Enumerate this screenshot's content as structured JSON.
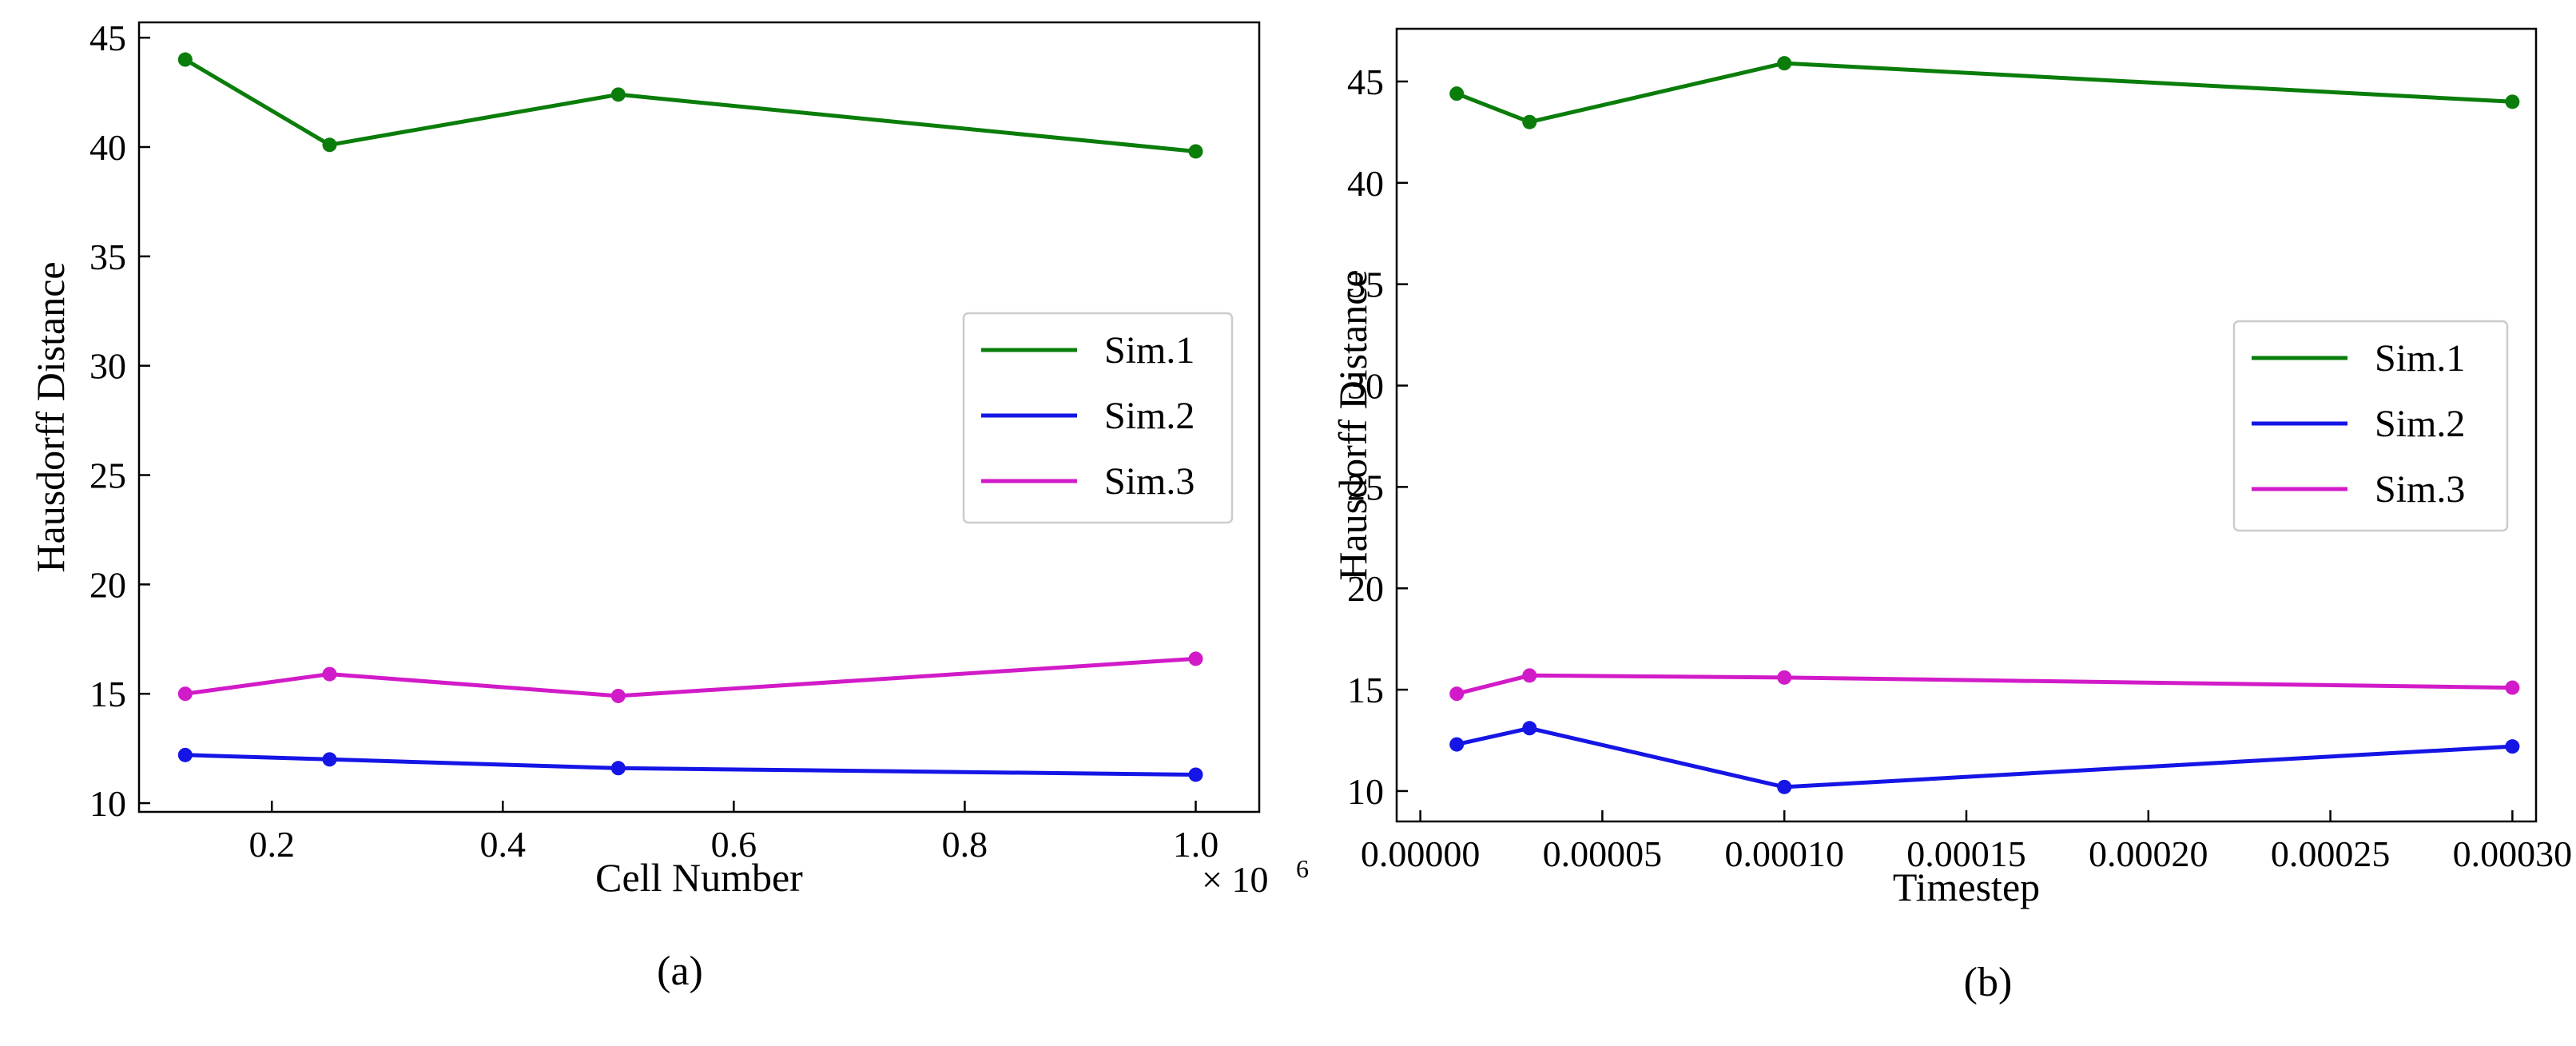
{
  "figure": {
    "panels": [
      "a",
      "b"
    ]
  },
  "chart_data": [
    {
      "id": "a",
      "type": "line",
      "caption": "(a)",
      "title": "",
      "xlabel": "Cell Number",
      "ylabel": "Hausdorff Distance",
      "x_multiplier_label": "× 10",
      "x_multiplier_exponent": "6",
      "xlim": [
        0.085,
        1.055
      ],
      "ylim": [
        9.6,
        45.7
      ],
      "x": [
        0.125,
        0.25,
        0.5,
        1.0
      ],
      "xticks": [
        0.2,
        0.4,
        0.6,
        0.8,
        1.0
      ],
      "xtick_labels": [
        "0.2",
        "0.4",
        "0.6",
        "0.8",
        "1.0"
      ],
      "yticks": [
        10,
        15,
        20,
        25,
        30,
        35,
        40,
        45
      ],
      "ytick_labels": [
        "10",
        "15",
        "20",
        "25",
        "30",
        "35",
        "40",
        "45"
      ],
      "legend_position": "center-right",
      "series": [
        {
          "name": "Sim.1",
          "color": "#0a7d0a",
          "values": [
            44.0,
            40.1,
            42.4,
            39.8
          ]
        },
        {
          "name": "Sim.2",
          "color": "#1515e6",
          "values": [
            12.2,
            12.0,
            11.6,
            11.3
          ]
        },
        {
          "name": "Sim.3",
          "color": "#d21bc8",
          "values": [
            15.0,
            15.9,
            14.9,
            16.6
          ]
        }
      ]
    },
    {
      "id": "b",
      "type": "line",
      "caption": "(b)",
      "title": "",
      "xlabel": "Timestep",
      "ylabel": "Hausdorff Distance",
      "xlim": [
        -6.5e-06,
        0.0003065
      ],
      "ylim": [
        8.5,
        47.6
      ],
      "x": [
        1e-05,
        3e-05,
        0.0001,
        0.0003
      ],
      "xticks": [
        0.0,
        5e-05,
        0.0001,
        0.00015,
        0.0002,
        0.00025,
        0.0003
      ],
      "xtick_labels": [
        "0.00000",
        "0.00005",
        "0.00010",
        "0.00015",
        "0.00020",
        "0.00025",
        "0.00030"
      ],
      "yticks": [
        10,
        15,
        20,
        25,
        30,
        35,
        40,
        45
      ],
      "ytick_labels": [
        "10",
        "15",
        "20",
        "25",
        "30",
        "35",
        "40",
        "45"
      ],
      "legend_position": "center-right",
      "series": [
        {
          "name": "Sim.1",
          "color": "#0a7d0a",
          "values": [
            44.4,
            43.0,
            45.9,
            44.0
          ]
        },
        {
          "name": "Sim.2",
          "color": "#1515e6",
          "values": [
            12.3,
            13.1,
            10.2,
            12.2
          ]
        },
        {
          "name": "Sim.3",
          "color": "#d21bc8",
          "values": [
            14.8,
            15.7,
            15.6,
            15.1
          ]
        }
      ]
    }
  ]
}
